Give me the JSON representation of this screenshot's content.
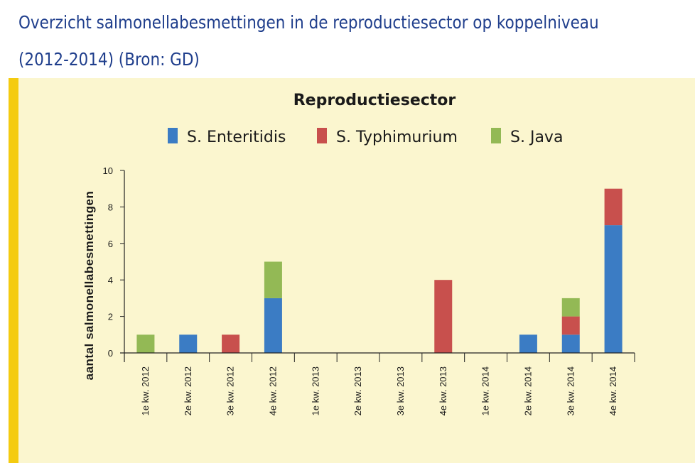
{
  "heading": {
    "line1": "Overzicht salmonellabesmettingen in de reproductiesector op koppelniveau",
    "line2": "(2012-2014) (Bron: GD)"
  },
  "chart_data": {
    "type": "bar",
    "stacked": true,
    "title": "Reproductiesector",
    "ylabel": "aantal salmonellabesmettingen",
    "xlabel": "",
    "ylim": [
      0,
      10
    ],
    "yticks": [
      0,
      2,
      4,
      6,
      8,
      10
    ],
    "grid": false,
    "legend_position": "top",
    "categories": [
      "1e kw. 2012",
      "2e kw. 2012",
      "3e kw. 2012",
      "4e kw. 2012",
      "1e kw. 2013",
      "2e kw. 2013",
      "3e kw. 2013",
      "4e kw. 2013",
      "1e kw. 2014",
      "2e kw. 2014",
      "3e kw. 2014",
      "4e kw. 2014"
    ],
    "series": [
      {
        "name": "S. Enteritidis",
        "color": "#3b7cc4",
        "values": [
          0,
          1,
          0,
          3,
          0,
          0,
          0,
          0,
          0,
          1,
          1,
          7
        ]
      },
      {
        "name": "S. Typhimurium",
        "color": "#c8504d",
        "values": [
          0,
          0,
          1,
          0,
          0,
          0,
          0,
          4,
          0,
          0,
          1,
          2
        ]
      },
      {
        "name": "S. Java",
        "color": "#93b955",
        "values": [
          1,
          0,
          0,
          2,
          0,
          0,
          0,
          0,
          0,
          0,
          1,
          0
        ]
      }
    ]
  },
  "colors": {
    "panel_background": "#fbf6cf",
    "panel_accent": "#f4cb10",
    "heading_text": "#1f3e8c"
  }
}
